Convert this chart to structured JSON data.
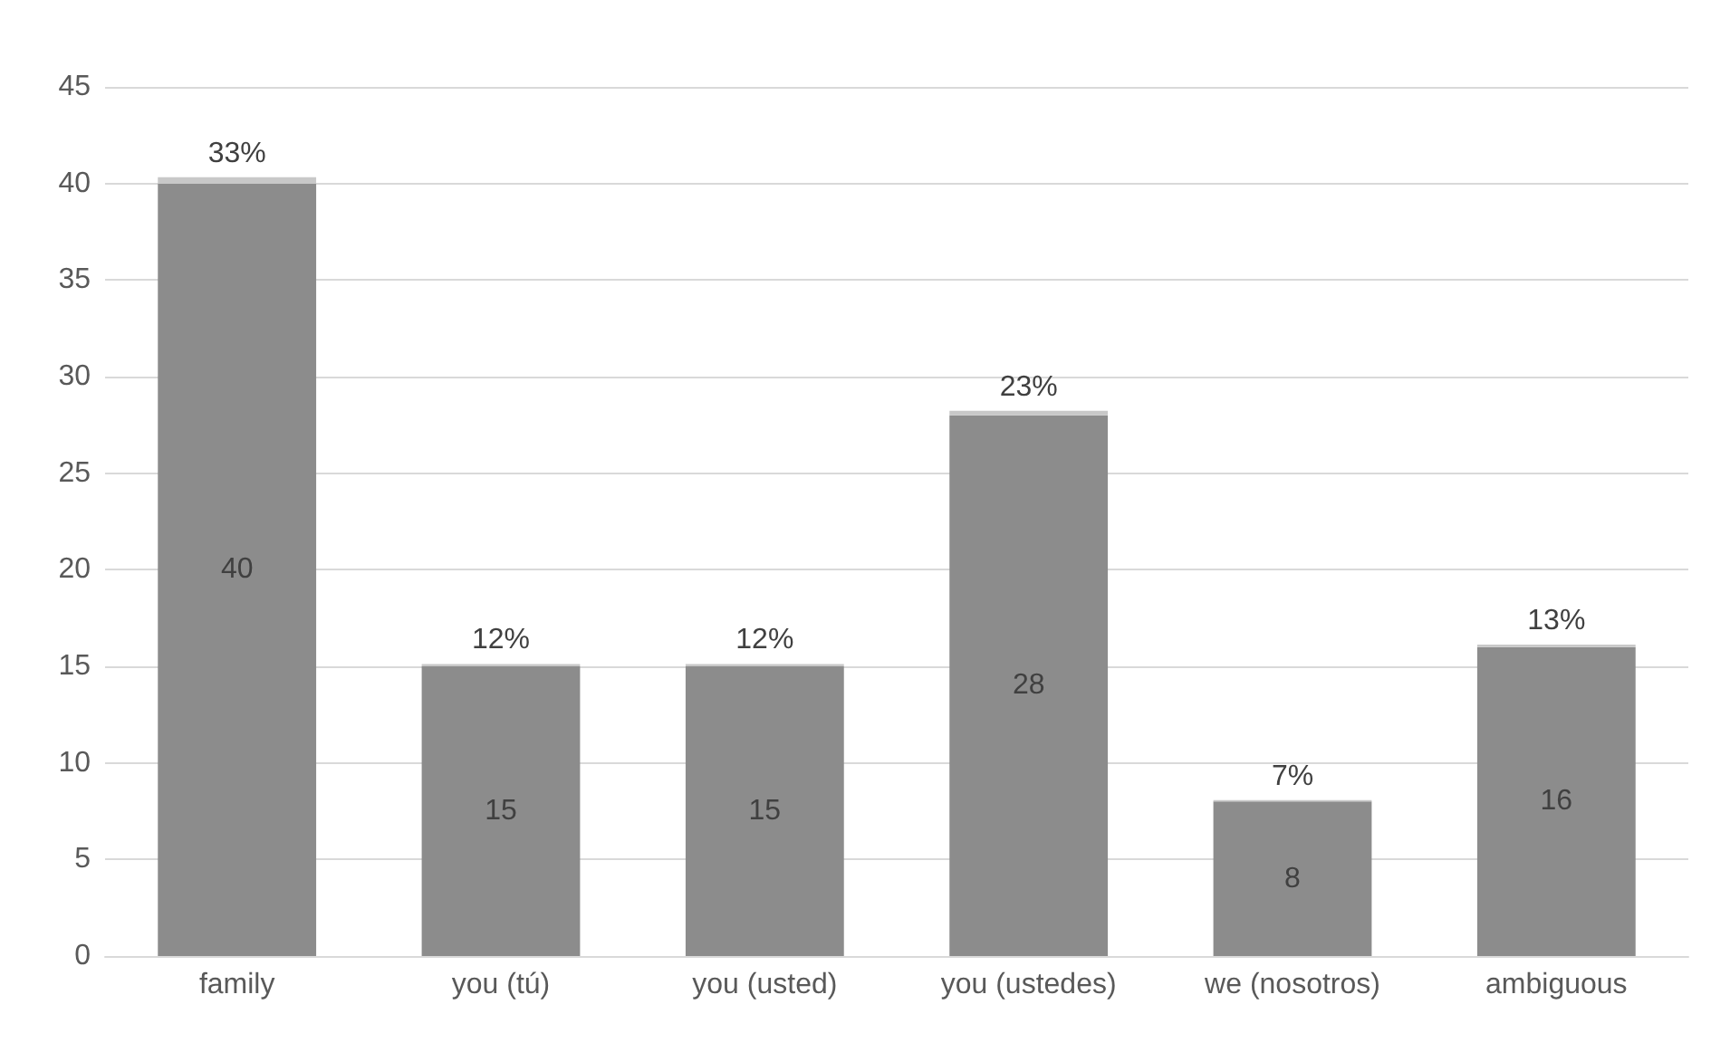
{
  "chart_data": {
    "type": "bar",
    "stacked": true,
    "categories": [
      "family",
      "you (tú)",
      "you (usted)",
      "you (ustedes)",
      "we (nosotros)",
      "ambiguous"
    ],
    "series": [
      {
        "color": "#8c8c8c",
        "values": [
          40,
          15,
          15,
          28,
          8,
          16
        ],
        "value_labels": [
          "40",
          "15",
          "15",
          "28",
          "8",
          "16"
        ]
      },
      {
        "color": "#c8c8c8",
        "values": [
          0.33,
          0.12,
          0.12,
          0.23,
          0.07,
          0.13
        ],
        "value_labels": [
          "33%",
          "12%",
          "12%",
          "23%",
          "7%",
          "13%"
        ]
      }
    ],
    "ylim": [
      0,
      45
    ],
    "yticks": [
      0,
      5,
      10,
      15,
      20,
      25,
      30,
      35,
      40,
      45
    ],
    "grid": "y"
  }
}
